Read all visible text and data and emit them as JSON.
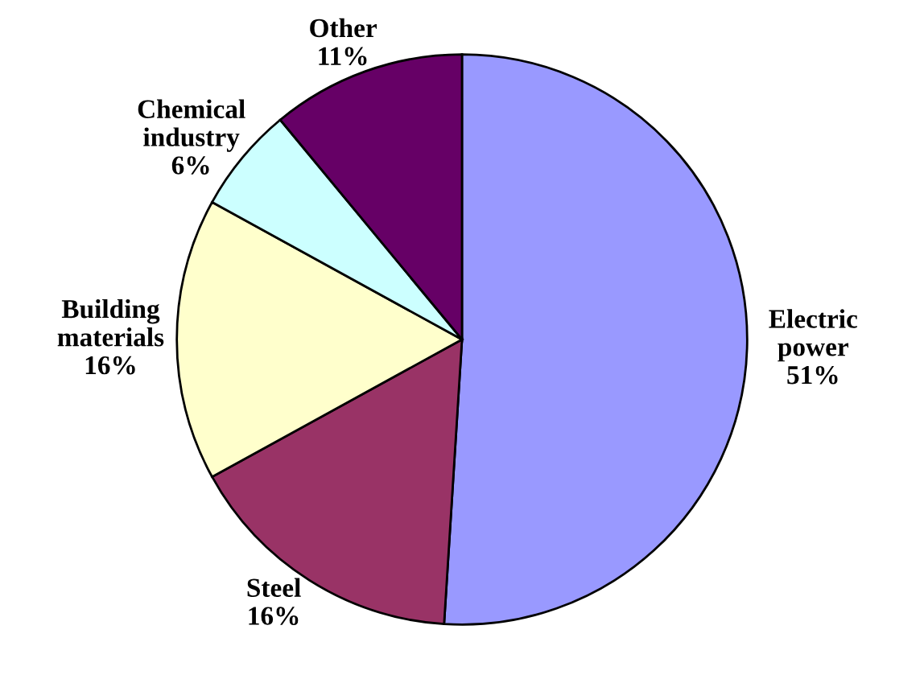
{
  "chart_data": {
    "type": "pie",
    "categories": [
      "Electric power",
      "Steel",
      "Building materials",
      "Chemical industry",
      "Other"
    ],
    "values": [
      51,
      16,
      16,
      6,
      11
    ],
    "value_labels": [
      "51%",
      "16%",
      "16%",
      "6%",
      "11%"
    ],
    "colors": [
      "#9999ff",
      "#993366",
      "#ffffcc",
      "#ccffff",
      "#660066"
    ],
    "legend": false
  }
}
